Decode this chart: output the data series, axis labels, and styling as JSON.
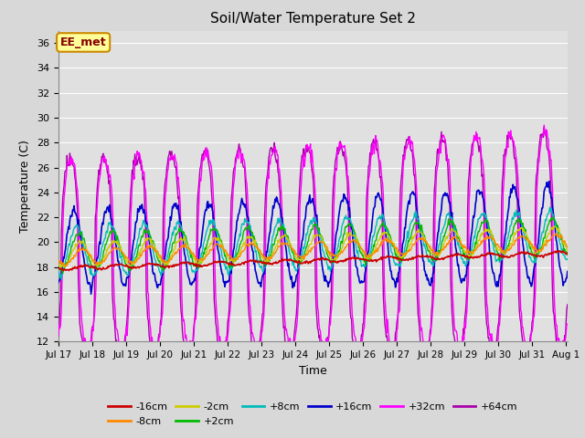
{
  "title": "Soil/Water Temperature Set 2",
  "xlabel": "Time",
  "ylabel": "Temperature (C)",
  "ylim": [
    12,
    37
  ],
  "yticks": [
    12,
    14,
    16,
    18,
    20,
    22,
    24,
    26,
    28,
    30,
    32,
    34,
    36
  ],
  "bg_color": "#e0e0e0",
  "fig_bg_color": "#d8d8d8",
  "annotation_text": "EE_met",
  "annotation_bg": "#ffff99",
  "annotation_border": "#cc8800",
  "annotation_fg": "#880000",
  "series_colors": {
    "-16cm": "#cc0000",
    "-8cm": "#ff8800",
    "-2cm": "#cccc00",
    "+2cm": "#00bb00",
    "+8cm": "#00bbbb",
    "+16cm": "#0000cc",
    "+32cm": "#ff00ff",
    "+64cm": "#aa00aa"
  },
  "n_points": 720,
  "start_day": 17.0,
  "end_day": 32.042
}
